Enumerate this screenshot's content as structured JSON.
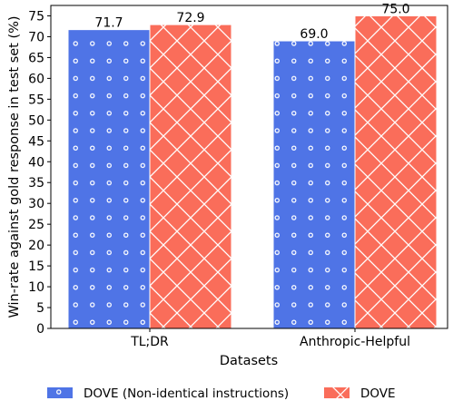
{
  "chart_data": {
    "type": "bar",
    "categories": [
      "TL;DR",
      "Anthropic-Helpful"
    ],
    "series": [
      {
        "name": "DOVE (Non-identical instructions)",
        "values": [
          71.7,
          69.0
        ],
        "color": "#4f74e6",
        "pattern": "dots"
      },
      {
        "name": "DOVE",
        "values": [
          72.9,
          75.0
        ],
        "color": "#fa6d5a",
        "pattern": "crosshatch"
      }
    ],
    "value_labels": [
      [
        "71.7",
        "69.0"
      ],
      [
        "72.9",
        "75.0"
      ]
    ],
    "xlabel": "Datasets",
    "ylabel": "Win-rate against gold response in test set (%)",
    "ylim": [
      0,
      77.5
    ],
    "yticks": [
      0,
      5,
      10,
      15,
      20,
      25,
      30,
      35,
      40,
      45,
      50,
      55,
      60,
      65,
      70,
      75
    ],
    "legend_position": "bottom",
    "grid": false
  }
}
